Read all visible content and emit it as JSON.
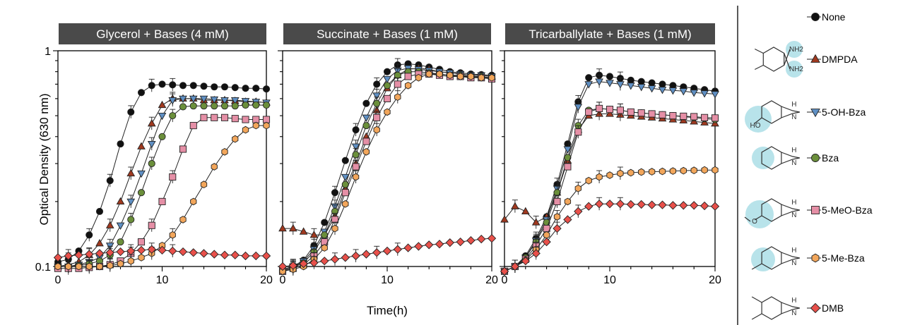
{
  "figure": {
    "ylabel": "Optical Density (630 nm)",
    "xlabel": "Time(h)"
  },
  "chart_data": [
    {
      "type": "line",
      "title": "Glycerol + Bases (4 mM)",
      "y_scale": "log",
      "xlim": [
        0,
        20
      ],
      "ylim": [
        0.1,
        1
      ],
      "xticks": [
        "0",
        "10",
        "20"
      ],
      "yticks": [
        "0.1",
        "1"
      ],
      "series": [
        {
          "name": "None",
          "x": [
            0,
            1,
            2,
            3,
            4,
            5,
            6,
            7,
            8,
            9,
            10,
            11,
            12,
            13,
            14,
            15,
            16,
            17,
            18,
            19,
            20
          ],
          "y": [
            0.105,
            0.108,
            0.118,
            0.14,
            0.18,
            0.25,
            0.37,
            0.52,
            0.64,
            0.69,
            0.7,
            0.695,
            0.69,
            0.69,
            0.685,
            0.68,
            0.68,
            0.675,
            0.67,
            0.67,
            0.665
          ]
        },
        {
          "name": "DMPDA",
          "x": [
            0,
            1,
            2,
            3,
            4,
            5,
            6,
            7,
            8,
            9,
            10,
            11,
            12,
            13,
            14,
            15,
            16,
            17,
            18,
            19,
            20
          ],
          "y": [
            0.1,
            0.102,
            0.105,
            0.113,
            0.128,
            0.155,
            0.2,
            0.27,
            0.36,
            0.46,
            0.56,
            0.6,
            0.6,
            0.6,
            0.59,
            0.59,
            0.59,
            0.585,
            0.58,
            0.58,
            0.575
          ]
        },
        {
          "name": "5-OH-Bza",
          "x": [
            0,
            1,
            2,
            3,
            4,
            5,
            6,
            7,
            8,
            9,
            10,
            11,
            12,
            13,
            14,
            15,
            16,
            17,
            18,
            19,
            20
          ],
          "y": [
            0.1,
            0.1,
            0.102,
            0.105,
            0.11,
            0.125,
            0.155,
            0.2,
            0.27,
            0.37,
            0.5,
            0.59,
            0.6,
            0.6,
            0.6,
            0.595,
            0.59,
            0.59,
            0.585,
            0.58,
            0.575
          ]
        },
        {
          "name": "Bza",
          "x": [
            0,
            1,
            2,
            3,
            4,
            5,
            6,
            7,
            8,
            9,
            10,
            11,
            12,
            13,
            14,
            15,
            16,
            17,
            18,
            19,
            20
          ],
          "y": [
            0.1,
            0.1,
            0.101,
            0.103,
            0.106,
            0.113,
            0.13,
            0.165,
            0.22,
            0.3,
            0.4,
            0.5,
            0.55,
            0.555,
            0.555,
            0.555,
            0.555,
            0.555,
            0.56,
            0.56,
            0.56
          ]
        },
        {
          "name": "5-MeO-Bza",
          "x": [
            0,
            1,
            2,
            3,
            4,
            5,
            6,
            7,
            8,
            9,
            10,
            11,
            12,
            13,
            14,
            15,
            16,
            17,
            18,
            19,
            20
          ],
          "y": [
            0.098,
            0.098,
            0.098,
            0.099,
            0.1,
            0.102,
            0.106,
            0.115,
            0.13,
            0.155,
            0.2,
            0.26,
            0.35,
            0.45,
            0.49,
            0.49,
            0.49,
            0.485,
            0.48,
            0.48,
            0.48
          ]
        },
        {
          "name": "5-Me-Bza",
          "x": [
            0,
            1,
            2,
            3,
            4,
            5,
            6,
            7,
            8,
            9,
            10,
            11,
            12,
            13,
            14,
            15,
            16,
            17,
            18,
            19,
            20
          ],
          "y": [
            0.1,
            0.1,
            0.1,
            0.1,
            0.1,
            0.101,
            0.103,
            0.106,
            0.11,
            0.115,
            0.125,
            0.14,
            0.165,
            0.2,
            0.24,
            0.29,
            0.34,
            0.39,
            0.43,
            0.45,
            0.45
          ]
        },
        {
          "name": "DMB",
          "x": [
            0,
            1,
            2,
            3,
            4,
            5,
            6,
            7,
            8,
            9,
            10,
            11,
            12,
            13,
            14,
            15,
            16,
            17,
            18,
            19,
            20
          ],
          "y": [
            0.11,
            0.112,
            0.113,
            0.114,
            0.115,
            0.116,
            0.117,
            0.118,
            0.119,
            0.12,
            0.119,
            0.118,
            0.117,
            0.116,
            0.115,
            0.114,
            0.113,
            0.113,
            0.112,
            0.112,
            0.112
          ]
        }
      ]
    },
    {
      "type": "line",
      "title": "Succinate + Bases (1 mM)",
      "y_scale": "log",
      "xlim": [
        0,
        20
      ],
      "ylim": [
        0.1,
        1
      ],
      "xticks": [
        "0",
        "10",
        "20"
      ],
      "series": [
        {
          "name": "None",
          "x": [
            0,
            1,
            2,
            3,
            4,
            5,
            6,
            7,
            8,
            9,
            10,
            11,
            12,
            13,
            14,
            15,
            16,
            17,
            18,
            19,
            20
          ],
          "y": [
            0.095,
            0.1,
            0.107,
            0.125,
            0.16,
            0.22,
            0.31,
            0.43,
            0.57,
            0.7,
            0.8,
            0.86,
            0.87,
            0.86,
            0.84,
            0.82,
            0.8,
            0.79,
            0.78,
            0.775,
            0.77
          ]
        },
        {
          "name": "DMPDA",
          "x": [
            0,
            1,
            2,
            3,
            4,
            5,
            6,
            7,
            8,
            9,
            10,
            11,
            12,
            13,
            14,
            15,
            16,
            17,
            18,
            19,
            20
          ],
          "y": [
            0.15,
            0.15,
            0.145,
            0.14,
            0.14,
            0.17,
            0.23,
            0.3,
            0.4,
            0.53,
            0.67,
            0.77,
            0.82,
            0.83,
            0.82,
            0.8,
            0.79,
            0.78,
            0.77,
            0.77,
            0.76
          ]
        },
        {
          "name": "5-OH-Bza",
          "x": [
            0,
            1,
            2,
            3,
            4,
            5,
            6,
            7,
            8,
            9,
            10,
            11,
            12,
            13,
            14,
            15,
            16,
            17,
            18,
            19,
            20
          ],
          "y": [
            0.097,
            0.1,
            0.106,
            0.12,
            0.145,
            0.19,
            0.26,
            0.36,
            0.49,
            0.62,
            0.74,
            0.81,
            0.83,
            0.82,
            0.81,
            0.8,
            0.79,
            0.78,
            0.77,
            0.77,
            0.76
          ]
        },
        {
          "name": "Bza",
          "x": [
            0,
            1,
            2,
            3,
            4,
            5,
            6,
            7,
            8,
            9,
            10,
            11,
            12,
            13,
            14,
            15,
            16,
            17,
            18,
            19,
            20
          ],
          "y": [
            0.096,
            0.099,
            0.104,
            0.117,
            0.14,
            0.18,
            0.24,
            0.33,
            0.45,
            0.57,
            0.69,
            0.77,
            0.8,
            0.8,
            0.79,
            0.78,
            0.77,
            0.77,
            0.76,
            0.76,
            0.75
          ]
        },
        {
          "name": "5-MeO-Bza",
          "x": [
            0,
            1,
            2,
            3,
            4,
            5,
            6,
            7,
            8,
            9,
            10,
            11,
            12,
            13,
            14,
            15,
            16,
            17,
            18,
            19,
            20
          ],
          "y": [
            0.095,
            0.098,
            0.102,
            0.112,
            0.13,
            0.165,
            0.22,
            0.29,
            0.38,
            0.49,
            0.6,
            0.7,
            0.76,
            0.78,
            0.78,
            0.77,
            0.76,
            0.76,
            0.75,
            0.75,
            0.74
          ]
        },
        {
          "name": "5-Me-Bza",
          "x": [
            0,
            1,
            2,
            3,
            4,
            5,
            6,
            7,
            8,
            9,
            10,
            11,
            12,
            13,
            14,
            15,
            16,
            17,
            18,
            19,
            20
          ],
          "y": [
            0.095,
            0.097,
            0.1,
            0.108,
            0.122,
            0.15,
            0.195,
            0.26,
            0.34,
            0.43,
            0.52,
            0.61,
            0.69,
            0.75,
            0.78,
            0.78,
            0.77,
            0.76,
            0.76,
            0.75,
            0.75
          ]
        },
        {
          "name": "DMB",
          "x": [
            0,
            1,
            2,
            3,
            4,
            5,
            6,
            7,
            8,
            9,
            10,
            11,
            12,
            13,
            14,
            15,
            16,
            17,
            18,
            19,
            20
          ],
          "y": [
            0.1,
            0.101,
            0.103,
            0.104,
            0.106,
            0.108,
            0.11,
            0.112,
            0.114,
            0.116,
            0.118,
            0.12,
            0.122,
            0.124,
            0.126,
            0.127,
            0.129,
            0.13,
            0.132,
            0.134,
            0.135
          ]
        }
      ]
    },
    {
      "type": "line",
      "title": "Tricarballylate + Bases (1 mM)",
      "y_scale": "log",
      "xlim": [
        0,
        20
      ],
      "ylim": [
        0.1,
        1
      ],
      "xticks": [
        "0",
        "10",
        "20"
      ],
      "series": [
        {
          "name": "None",
          "x": [
            0,
            1,
            2,
            3,
            4,
            5,
            6,
            7,
            8,
            9,
            10,
            11,
            12,
            13,
            14,
            15,
            16,
            17,
            18,
            19,
            20
          ],
          "y": [
            0.095,
            0.1,
            0.112,
            0.135,
            0.17,
            0.24,
            0.37,
            0.58,
            0.75,
            0.77,
            0.76,
            0.745,
            0.73,
            0.72,
            0.71,
            0.7,
            0.69,
            0.68,
            0.67,
            0.66,
            0.65
          ]
        },
        {
          "name": "DMPDA",
          "x": [
            0,
            1,
            2,
            3,
            4,
            5,
            6,
            7,
            8,
            9,
            10,
            11,
            12,
            13,
            14,
            15,
            16,
            17,
            18,
            19,
            20
          ],
          "y": [
            0.165,
            0.19,
            0.18,
            0.16,
            0.17,
            0.22,
            0.31,
            0.43,
            0.5,
            0.51,
            0.51,
            0.505,
            0.5,
            0.495,
            0.49,
            0.485,
            0.48,
            0.475,
            0.47,
            0.465,
            0.46
          ]
        },
        {
          "name": "5-OH-Bza",
          "x": [
            0,
            1,
            2,
            3,
            4,
            5,
            6,
            7,
            8,
            9,
            10,
            11,
            12,
            13,
            14,
            15,
            16,
            17,
            18,
            19,
            20
          ],
          "y": [
            0.095,
            0.1,
            0.11,
            0.132,
            0.165,
            0.23,
            0.35,
            0.55,
            0.7,
            0.72,
            0.71,
            0.7,
            0.69,
            0.68,
            0.67,
            0.66,
            0.655,
            0.65,
            0.64,
            0.635,
            0.63
          ]
        },
        {
          "name": "Bza",
          "x": [
            0,
            1,
            2,
            3,
            4,
            5,
            6,
            7,
            8,
            9,
            10,
            11,
            12,
            13,
            14,
            15,
            16,
            17,
            18,
            19,
            20
          ],
          "y": [
            0.095,
            0.1,
            0.11,
            0.13,
            0.16,
            0.22,
            0.32,
            0.45,
            0.53,
            0.54,
            0.535,
            0.53,
            0.52,
            0.515,
            0.51,
            0.505,
            0.5,
            0.495,
            0.49,
            0.485,
            0.48
          ]
        },
        {
          "name": "5-MeO-Bza",
          "x": [
            0,
            1,
            2,
            3,
            4,
            5,
            6,
            7,
            8,
            9,
            10,
            11,
            12,
            13,
            14,
            15,
            16,
            17,
            18,
            19,
            20
          ],
          "y": [
            0.095,
            0.1,
            0.108,
            0.125,
            0.15,
            0.2,
            0.29,
            0.42,
            0.52,
            0.54,
            0.535,
            0.53,
            0.52,
            0.515,
            0.51,
            0.505,
            0.5,
            0.497,
            0.495,
            0.49,
            0.488
          ]
        },
        {
          "name": "5-Me-Bza",
          "x": [
            0,
            1,
            2,
            3,
            4,
            5,
            6,
            7,
            8,
            9,
            10,
            11,
            12,
            13,
            14,
            15,
            16,
            17,
            18,
            19,
            20
          ],
          "y": [
            0.095,
            0.1,
            0.107,
            0.12,
            0.14,
            0.17,
            0.2,
            0.23,
            0.25,
            0.26,
            0.265,
            0.27,
            0.272,
            0.274,
            0.275,
            0.276,
            0.277,
            0.278,
            0.279,
            0.28,
            0.28
          ]
        },
        {
          "name": "DMB",
          "x": [
            0,
            1,
            2,
            3,
            4,
            5,
            6,
            7,
            8,
            9,
            10,
            11,
            12,
            13,
            14,
            15,
            16,
            17,
            18,
            19,
            20
          ],
          "y": [
            0.095,
            0.1,
            0.106,
            0.115,
            0.13,
            0.15,
            0.165,
            0.18,
            0.19,
            0.195,
            0.195,
            0.195,
            0.194,
            0.194,
            0.193,
            0.193,
            0.192,
            0.192,
            0.192,
            0.191,
            0.19
          ]
        }
      ]
    }
  ],
  "legend": {
    "items": [
      {
        "name": "None",
        "marker": "circle",
        "color": "#111111"
      },
      {
        "name": "DMPDA",
        "marker": "triangle-up",
        "color": "#a0391f"
      },
      {
        "name": "5-OH-Bza",
        "marker": "triangle-down",
        "color": "#5f8fc3"
      },
      {
        "name": "Bza",
        "marker": "circle",
        "color": "#6b8f3b"
      },
      {
        "name": "5-MeO-Bza",
        "marker": "square",
        "color": "#e58fa6"
      },
      {
        "name": "5-Me-Bza",
        "marker": "hexagon",
        "color": "#f2a65b"
      },
      {
        "name": "DMB",
        "marker": "diamond",
        "color": "#e8504a"
      }
    ],
    "structure_labels": {
      "nh2": "NH",
      "nh2_sub": "2",
      "nh": "H",
      "n": "N",
      "ho": "HO",
      "o": "O"
    },
    "highlight_color": "#b8e3ea"
  }
}
